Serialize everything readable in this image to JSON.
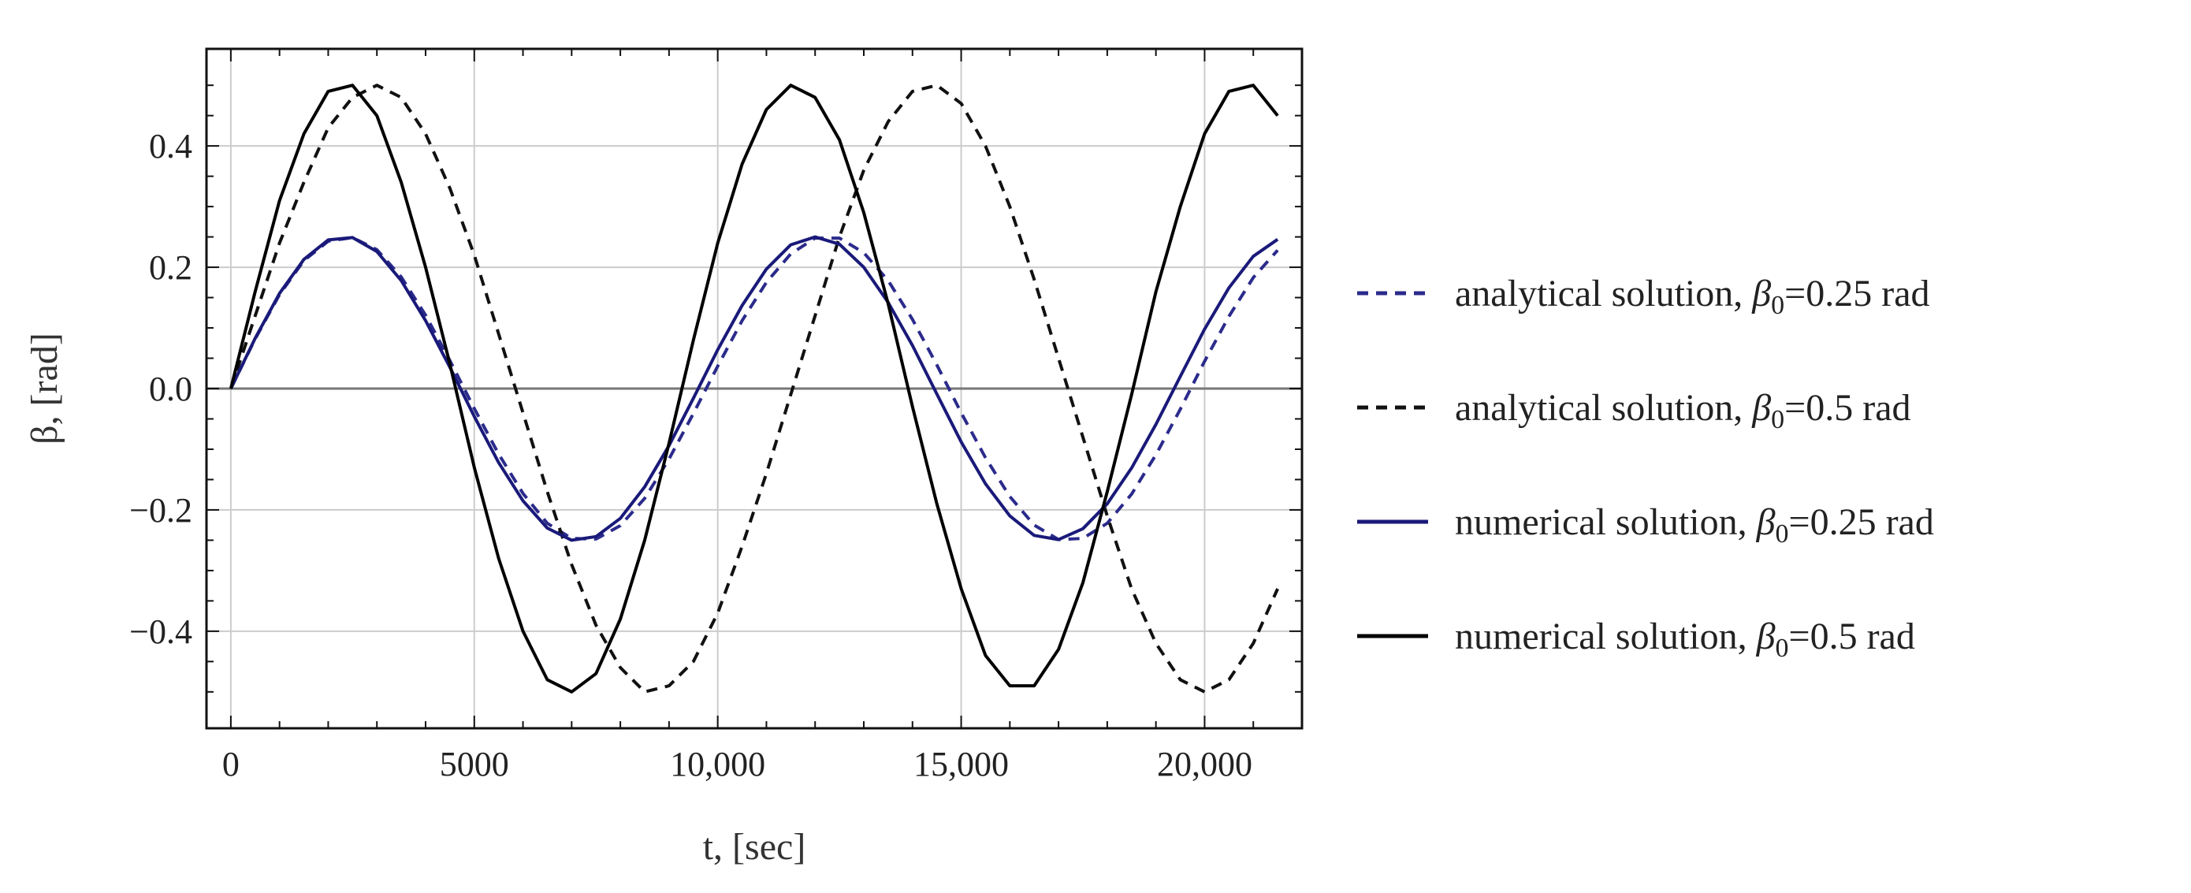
{
  "chart_data": {
    "type": "line",
    "xlabel": "t, [sec]",
    "ylabel": "β, [rad]",
    "xlim": [
      -500,
      22000
    ],
    "ylim": [
      -0.56,
      0.56
    ],
    "x_ticks": [
      0,
      5000,
      10000,
      15000,
      20000
    ],
    "x_tick_labels": [
      "0",
      "5000",
      "10,000",
      "15,000",
      "20,000"
    ],
    "y_ticks": [
      -0.4,
      -0.2,
      0.0,
      0.2,
      0.4
    ],
    "y_tick_labels": [
      "−0.4",
      "−0.2",
      "0.0",
      "0.2",
      "0.4"
    ],
    "grid": true,
    "legend_position": "right",
    "series": [
      {
        "name": "analytical solution, β0=0.25 rad",
        "legend_prefix": "analytical solution, ",
        "legend_symbol": "β",
        "legend_subscript": "0",
        "legend_suffix": "=0.25 rad",
        "color": "#2b2b8c",
        "dash": "dashed",
        "x": [
          0,
          500,
          1000,
          1500,
          2000,
          2500,
          3000,
          3500,
          4000,
          4500,
          5000,
          5500,
          6000,
          6500,
          7000,
          7500,
          8000,
          8500,
          9000,
          9500,
          10000,
          10500,
          11000,
          11500,
          12000,
          12500,
          13000,
          13500,
          14000,
          14500,
          15000,
          15500,
          16000,
          16500,
          17000,
          17500,
          18000,
          18500,
          19000,
          19500,
          20000,
          20500,
          21000,
          21500
        ],
        "y": [
          0.0,
          0.082,
          0.155,
          0.211,
          0.243,
          0.249,
          0.229,
          0.184,
          0.121,
          0.046,
          -0.033,
          -0.108,
          -0.173,
          -0.222,
          -0.247,
          -0.248,
          -0.226,
          -0.181,
          -0.116,
          -0.041,
          0.037,
          0.112,
          0.175,
          0.222,
          0.248,
          0.248,
          0.224,
          0.178,
          0.114,
          0.039,
          -0.04,
          -0.114,
          -0.178,
          -0.225,
          -0.249,
          -0.247,
          -0.222,
          -0.174,
          -0.109,
          -0.034,
          0.045,
          0.119,
          0.183,
          0.228
        ]
      },
      {
        "name": "analytical solution, β0=0.5 rad",
        "legend_prefix": "analytical solution, ",
        "legend_symbol": "β",
        "legend_subscript": "0",
        "legend_suffix": "=0.5 rad",
        "color": "#111111",
        "dash": "dashed",
        "x": [
          0,
          500,
          1000,
          1500,
          2000,
          2500,
          3000,
          3500,
          4000,
          4500,
          5000,
          5500,
          6000,
          6500,
          7000,
          7500,
          8000,
          8500,
          9000,
          9500,
          10000,
          10500,
          11000,
          11500,
          12000,
          12500,
          13000,
          13500,
          14000,
          14500,
          15000,
          15500,
          16000,
          16500,
          17000,
          17500,
          18000,
          18500,
          19000,
          19500,
          20000,
          20500,
          21000,
          21500
        ],
        "y": [
          0.0,
          0.12,
          0.24,
          0.34,
          0.43,
          0.48,
          0.5,
          0.48,
          0.42,
          0.33,
          0.22,
          0.09,
          -0.04,
          -0.17,
          -0.29,
          -0.39,
          -0.46,
          -0.5,
          -0.49,
          -0.45,
          -0.37,
          -0.26,
          -0.14,
          -0.01,
          0.12,
          0.25,
          0.36,
          0.44,
          0.49,
          0.5,
          0.47,
          0.4,
          0.3,
          0.18,
          0.05,
          -0.08,
          -0.21,
          -0.33,
          -0.42,
          -0.48,
          -0.5,
          -0.48,
          -0.42,
          -0.33
        ]
      },
      {
        "name": "numerical solution, β0=0.25 rad",
        "legend_prefix": "numerical solution, ",
        "legend_symbol": "β",
        "legend_subscript": "0",
        "legend_suffix": "=0.25 rad",
        "color": "#1a1a7a",
        "dash": "solid",
        "x": [
          0,
          500,
          1000,
          1500,
          2000,
          2500,
          3000,
          3500,
          4000,
          4500,
          5000,
          5500,
          6000,
          6500,
          7000,
          7500,
          8000,
          8500,
          9000,
          9500,
          10000,
          10500,
          11000,
          11500,
          12000,
          12500,
          13000,
          13500,
          14000,
          14500,
          15000,
          15500,
          16000,
          16500,
          17000,
          17500,
          18000,
          18500,
          19000,
          19500,
          20000,
          20500,
          21000,
          21500
        ],
        "y": [
          0.0,
          0.083,
          0.157,
          0.213,
          0.245,
          0.249,
          0.226,
          0.178,
          0.112,
          0.035,
          -0.046,
          -0.122,
          -0.185,
          -0.23,
          -0.25,
          -0.244,
          -0.214,
          -0.162,
          -0.094,
          -0.016,
          0.064,
          0.137,
          0.197,
          0.237,
          0.25,
          0.238,
          0.2,
          0.142,
          0.071,
          -0.009,
          -0.088,
          -0.157,
          -0.21,
          -0.242,
          -0.249,
          -0.231,
          -0.19,
          -0.131,
          -0.059,
          0.02,
          0.098,
          0.166,
          0.218,
          0.246
        ]
      },
      {
        "name": "numerical solution, β0=0.5 rad",
        "legend_prefix": "numerical solution, ",
        "legend_symbol": "β",
        "legend_subscript": "0",
        "legend_suffix": "=0.5 rad",
        "color": "#000000",
        "dash": "solid",
        "x": [
          0,
          500,
          1000,
          1500,
          2000,
          2500,
          3000,
          3500,
          4000,
          4500,
          5000,
          5500,
          6000,
          6500,
          7000,
          7500,
          8000,
          8500,
          9000,
          9500,
          10000,
          10500,
          11000,
          11500,
          12000,
          12500,
          13000,
          13500,
          14000,
          14500,
          15000,
          15500,
          16000,
          16500,
          17000,
          17500,
          18000,
          18500,
          19000,
          19500,
          20000,
          20500,
          21000,
          21500
        ],
        "y": [
          0.0,
          0.16,
          0.31,
          0.42,
          0.49,
          0.5,
          0.45,
          0.34,
          0.2,
          0.04,
          -0.13,
          -0.28,
          -0.4,
          -0.48,
          -0.5,
          -0.47,
          -0.38,
          -0.25,
          -0.09,
          0.08,
          0.24,
          0.37,
          0.46,
          0.5,
          0.48,
          0.41,
          0.29,
          0.14,
          -0.03,
          -0.19,
          -0.33,
          -0.44,
          -0.49,
          -0.49,
          -0.43,
          -0.32,
          -0.17,
          -0.01,
          0.16,
          0.3,
          0.42,
          0.49,
          0.5,
          0.45
        ]
      }
    ]
  }
}
